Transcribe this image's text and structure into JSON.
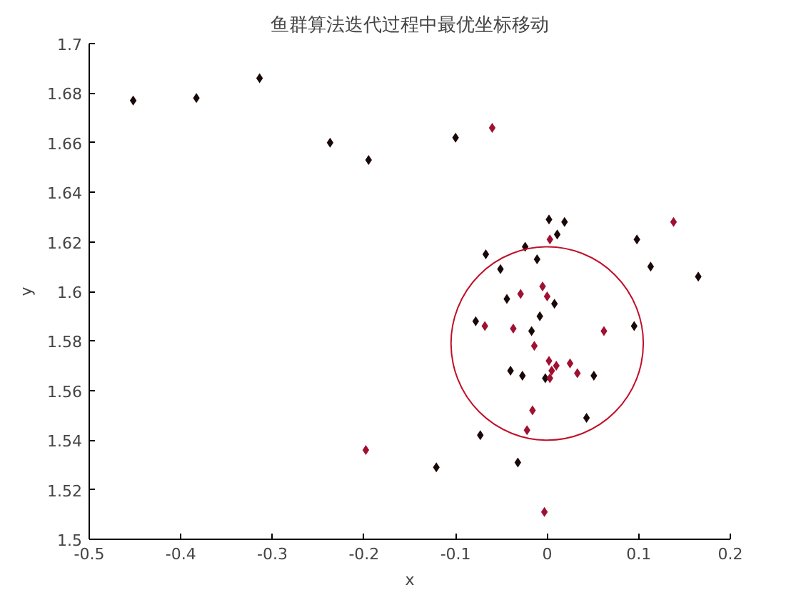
{
  "chart_data": {
    "type": "scatter",
    "title": "鱼群算法迭代过程中最优坐标移动",
    "xlabel": "x",
    "ylabel": "y",
    "xlim": [
      -0.5,
      0.2
    ],
    "ylim": [
      1.5,
      1.7
    ],
    "xticks": [
      -0.5,
      -0.4,
      -0.3,
      -0.2,
      -0.1,
      0,
      0.1,
      0.2
    ],
    "yticks": [
      1.5,
      1.52,
      1.54,
      1.56,
      1.58,
      1.6,
      1.62,
      1.64,
      1.66,
      1.68,
      1.7
    ],
    "grid": false,
    "marker": "diamond",
    "series": [
      {
        "color": "#1a0808",
        "x": [
          -0.452,
          -0.383,
          -0.314,
          -0.237,
          -0.195,
          -0.1,
          0.002,
          0.019,
          0.011,
          0.098,
          0.113,
          0.165,
          -0.067,
          -0.024,
          -0.011,
          -0.051,
          -0.044,
          0.008,
          -0.008,
          -0.078,
          -0.017,
          0.095,
          -0.04,
          -0.027,
          -0.002,
          0.051,
          0.043,
          -0.073,
          -0.121,
          -0.032
        ],
        "values": [
          1.677,
          1.678,
          1.686,
          1.66,
          1.653,
          1.662,
          1.629,
          1.628,
          1.623,
          1.621,
          1.61,
          1.606,
          1.615,
          1.618,
          1.613,
          1.609,
          1.597,
          1.595,
          1.59,
          1.588,
          1.584,
          1.586,
          1.568,
          1.566,
          1.565,
          1.566,
          1.549,
          1.542,
          1.529,
          1.531
        ]
      },
      {
        "color": "#a01030",
        "x": [
          -0.06,
          0.003,
          0.138,
          -0.005,
          0.0,
          -0.029,
          -0.068,
          -0.037,
          0.062,
          -0.014,
          0.002,
          0.01,
          0.025,
          0.003,
          0.033,
          0.005,
          -0.016,
          -0.022,
          -0.198,
          -0.003
        ],
        "values": [
          1.666,
          1.621,
          1.628,
          1.602,
          1.598,
          1.599,
          1.586,
          1.585,
          1.584,
          1.578,
          1.572,
          1.57,
          1.571,
          1.565,
          1.567,
          1.568,
          1.552,
          1.544,
          1.536,
          1.511
        ]
      }
    ]
  }
}
